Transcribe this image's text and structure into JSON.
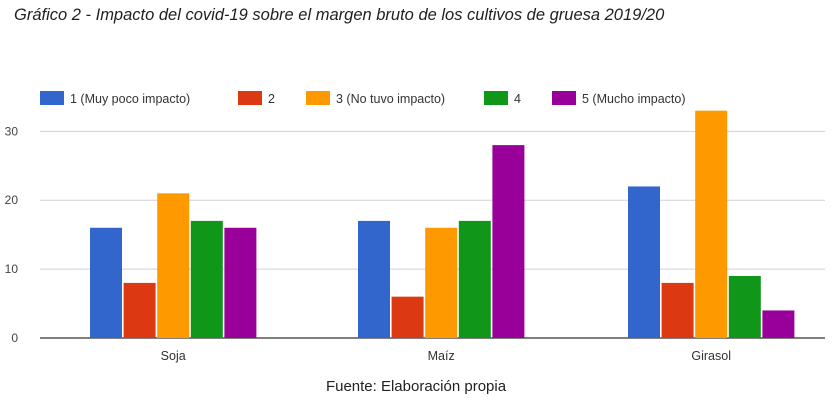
{
  "header": {
    "title": "Gráfico 2 - Impacto del covid-19 sobre el margen bruto de los cultivos de gruesa 2019/20"
  },
  "footer": {
    "source": "Fuente: Elaboración propia"
  },
  "chart_data": {
    "type": "bar",
    "title": "",
    "xlabel": "",
    "ylabel": "",
    "categories": [
      "Soja",
      "Maíz",
      "Girasol"
    ],
    "ylim": [
      0,
      36
    ],
    "yticks": [
      "0",
      "10",
      "20",
      "30"
    ],
    "grid": true,
    "legend_position": "top-left",
    "series": [
      {
        "name": "1 (Muy poco impacto)",
        "color": "#3366cc",
        "values": [
          16,
          17,
          22
        ]
      },
      {
        "name": "2",
        "color": "#dc3912",
        "values": [
          8,
          6,
          8
        ]
      },
      {
        "name": "3 (No tuvo impacto)",
        "color": "#ff9900",
        "values": [
          21,
          16,
          33
        ]
      },
      {
        "name": "4",
        "color": "#109618",
        "values": [
          17,
          17,
          9
        ]
      },
      {
        "name": "5 (Mucho impacto)",
        "color": "#990099",
        "values": [
          16,
          28,
          4
        ]
      }
    ]
  }
}
